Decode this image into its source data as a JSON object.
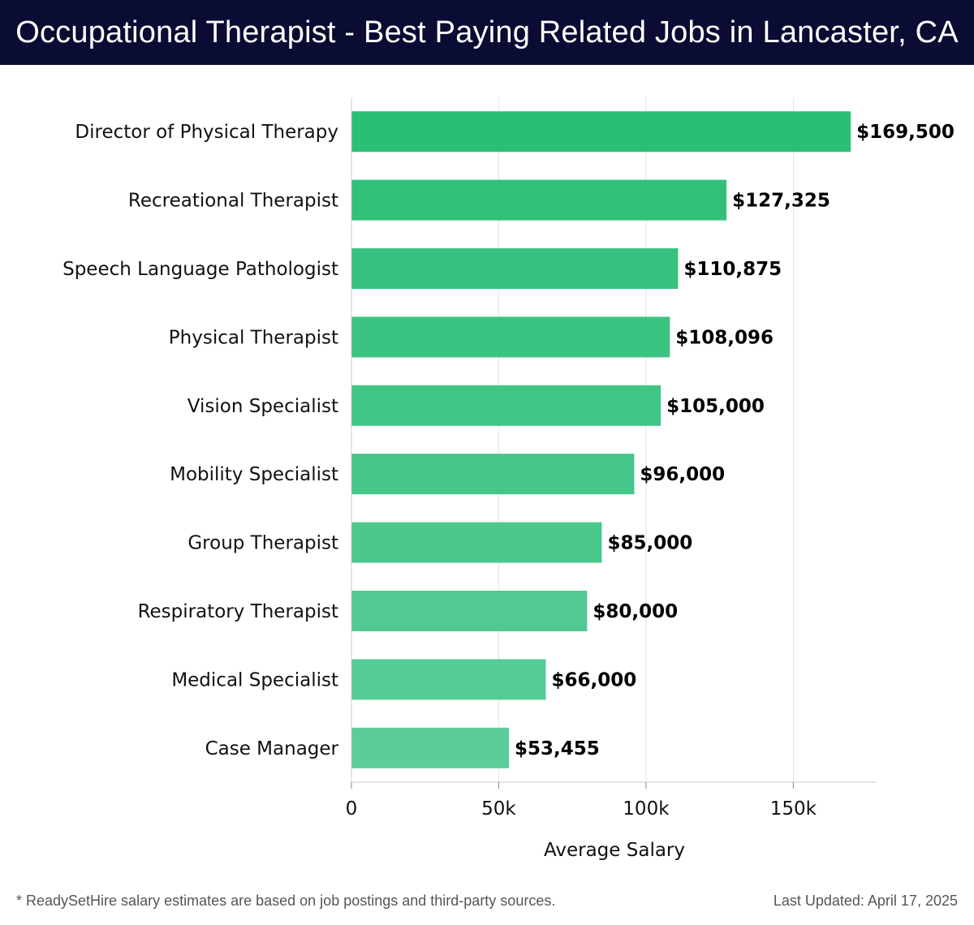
{
  "chart_data": {
    "type": "bar",
    "orientation": "horizontal",
    "title": "Occupational Therapist - Best Paying Related Jobs in Lancaster, CA",
    "xlabel": "Average Salary",
    "ylabel": "",
    "xlim": [
      0,
      178000
    ],
    "x_ticks": [
      {
        "value": 0,
        "label": "0"
      },
      {
        "value": 50000,
        "label": "50k"
      },
      {
        "value": 100000,
        "label": "100k"
      },
      {
        "value": 150000,
        "label": "150k"
      }
    ],
    "grid": "vertical",
    "categories": [
      "Director of Physical Therapy",
      "Recreational Therapist",
      "Speech Language Pathologist",
      "Physical Therapist",
      "Vision Specialist",
      "Mobility Specialist",
      "Group Therapist",
      "Respiratory Therapist",
      "Medical Specialist",
      "Case Manager"
    ],
    "values": [
      169500,
      127325,
      110875,
      108096,
      105000,
      96000,
      85000,
      80000,
      66000,
      53455
    ],
    "value_labels": [
      "$169,500",
      "$127,325",
      "$110,875",
      "$108,096",
      "$105,000",
      "$96,000",
      "$85,000",
      "$80,000",
      "$66,000",
      "$53,455"
    ],
    "bar_color_start": "#2bbf76",
    "bar_color_end": "#5ccc98"
  },
  "footer": {
    "note": "* ReadySetHire salary estimates are based on job postings and third-party sources.",
    "last_updated": "Last Updated: April 17, 2025"
  }
}
